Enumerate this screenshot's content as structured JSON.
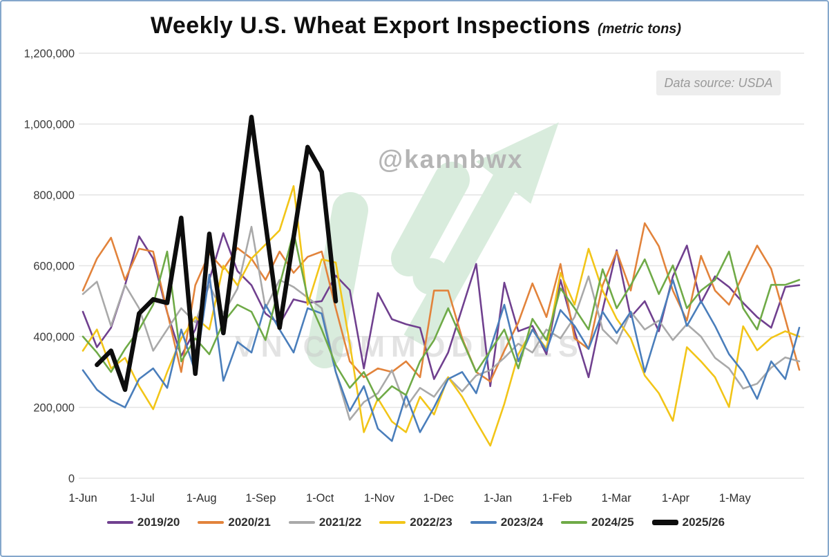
{
  "header": {
    "title": "Weekly U.S. Wheat Export Inspections",
    "subtitle": "(metric tons)",
    "data_source": "Data source: USDA"
  },
  "watermarks": {
    "handle": "@kannbwx",
    "brand": "VN COMMODITIES",
    "arrow_color": "#d9ecdd"
  },
  "frame": {
    "border_color": "#84a7cc",
    "background": "#ffffff"
  },
  "chart_data": {
    "type": "line",
    "title": "Weekly U.S. Wheat Export Inspections",
    "units": "metric tons",
    "grid": true,
    "legend_position": "bottom",
    "x_axis": {
      "tick_labels": [
        "1-Jun",
        "1-Jul",
        "1-Aug",
        "1-Sep",
        "1-Oct",
        "1-Nov",
        "1-Dec",
        "1-Jan",
        "1-Feb",
        "1-Mar",
        "1-Apr",
        "1-May"
      ],
      "note": "weekly observations across the Jun-May marketing year, 52 weeks"
    },
    "y_axis": {
      "min": 0,
      "max": 1200000,
      "tick_interval": 200000,
      "tick_labels": [
        "0",
        "200,000",
        "400,000",
        "600,000",
        "800,000",
        "1,000,000",
        "1,200,000"
      ]
    },
    "grid_color": "#e4e4e4",
    "series": [
      {
        "name": "2019/20",
        "color": "#70408f",
        "width": 2.6,
        "start_week": 0,
        "values": [
          470000,
          370000,
          425000,
          545000,
          683000,
          620000,
          468000,
          345000,
          420000,
          560000,
          692000,
          585000,
          545000,
          465000,
          435000,
          505000,
          495000,
          500000,
          572000,
          531000,
          310000,
          523000,
          449000,
          435000,
          425000,
          280000,
          355000,
          480000,
          605000,
          260000,
          552000,
          415000,
          430000,
          350000,
          560000,
          415000,
          285000,
          475000,
          644000,
          455000,
          500000,
          415000,
          570000,
          657000,
          495000,
          570000,
          540000,
          495000,
          455000,
          425000,
          540000,
          545000
        ]
      },
      {
        "name": "2020/21",
        "color": "#e2833b",
        "width": 2.6,
        "start_week": 0,
        "values": [
          530000,
          620000,
          679000,
          560000,
          648000,
          640000,
          470000,
          300000,
          545000,
          635000,
          590000,
          650000,
          620000,
          560000,
          640000,
          580000,
          625000,
          640000,
          480000,
          330000,
          285000,
          310000,
          300000,
          330000,
          285000,
          530000,
          530000,
          395000,
          300000,
          273000,
          360000,
          440000,
          550000,
          455000,
          605000,
          395000,
          365000,
          545000,
          640000,
          530000,
          720000,
          655000,
          530000,
          445000,
          628000,
          530000,
          490000,
          575000,
          657000,
          591000,
          450000,
          306000
        ]
      },
      {
        "name": "2021/22",
        "color": "#a9a9a9",
        "width": 2.6,
        "start_week": 0,
        "values": [
          520000,
          555000,
          430000,
          546000,
          480000,
          360000,
          420000,
          480000,
          440000,
          545000,
          465000,
          535000,
          710000,
          480000,
          560000,
          540000,
          510000,
          480000,
          300000,
          165000,
          215000,
          240000,
          305000,
          200000,
          255000,
          230000,
          285000,
          245000,
          290000,
          305000,
          340000,
          380000,
          355000,
          420000,
          395000,
          455000,
          570000,
          420000,
          380000,
          470000,
          420000,
          445000,
          390000,
          435000,
          400000,
          340000,
          310000,
          253000,
          267000,
          312000,
          341000,
          330000
        ]
      },
      {
        "name": "2022/23",
        "color": "#f2c518",
        "width": 2.6,
        "start_week": 0,
        "values": [
          360000,
          420000,
          310000,
          340000,
          260000,
          195000,
          300000,
          395000,
          455000,
          420000,
          600000,
          545000,
          620000,
          660000,
          700000,
          825000,
          490000,
          618000,
          609000,
          380000,
          130000,
          225000,
          160000,
          130000,
          230000,
          180000,
          285000,
          230000,
          160000,
          92000,
          210000,
          350000,
          420000,
          365000,
          580000,
          490000,
          648000,
          530000,
          450000,
          395000,
          290000,
          240000,
          162000,
          370000,
          330000,
          285000,
          201000,
          429000,
          361000,
          396000,
          415000,
          400000
        ]
      },
      {
        "name": "2023/24",
        "color": "#4a7ebb",
        "width": 2.6,
        "start_week": 0,
        "values": [
          305000,
          250000,
          220000,
          200000,
          280000,
          310000,
          255000,
          420000,
          300000,
          575000,
          275000,
          385000,
          355000,
          490000,
          420000,
          355000,
          480000,
          465000,
          300000,
          190000,
          260000,
          140000,
          105000,
          235000,
          130000,
          200000,
          280000,
          300000,
          240000,
          365000,
          490000,
          330000,
          420000,
          360000,
          475000,
          430000,
          365000,
          470000,
          410000,
          470000,
          300000,
          430000,
          560000,
          430000,
          500000,
          430000,
          350000,
          300000,
          224000,
          330000,
          280000,
          425000
        ]
      },
      {
        "name": "2024/25",
        "color": "#6faa47",
        "width": 2.6,
        "start_week": 0,
        "values": [
          400000,
          355000,
          300000,
          365000,
          420000,
          490000,
          640000,
          330000,
          395000,
          350000,
          440000,
          490000,
          470000,
          390000,
          545000,
          695000,
          510000,
          420000,
          320000,
          255000,
          300000,
          220000,
          260000,
          235000,
          330000,
          390000,
          480000,
          390000,
          300000,
          360000,
          420000,
          310000,
          450000,
          390000,
          536000,
          480000,
          420000,
          590000,
          480000,
          545000,
          618000,
          520000,
          601000,
          480000,
          530000,
          560000,
          640000,
          480000,
          420000,
          546000,
          546000,
          560000
        ]
      },
      {
        "name": "2025/26",
        "color": "#0d0d0d",
        "width": 6.5,
        "start_week": 1,
        "values": [
          320000,
          360000,
          250000,
          465000,
          505000,
          495000,
          735000,
          295000,
          690000,
          410000,
          715000,
          1020000,
          720000,
          425000,
          680000,
          935000,
          865000,
          500000
        ]
      }
    ]
  }
}
